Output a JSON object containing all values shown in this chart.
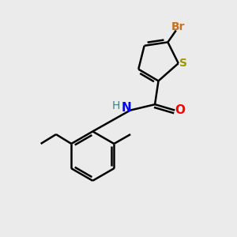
{
  "background_color": "#ebebeb",
  "bond_color": "#000000",
  "atom_colors": {
    "Br": "#c87020",
    "S": "#999900",
    "N": "#0000FF",
    "O": "#FF0000",
    "H": "#408080",
    "C": "#000000"
  },
  "figsize": [
    3.0,
    3.0
  ],
  "dpi": 100,
  "xlim": [
    0,
    10
  ],
  "ylim": [
    0,
    10
  ]
}
